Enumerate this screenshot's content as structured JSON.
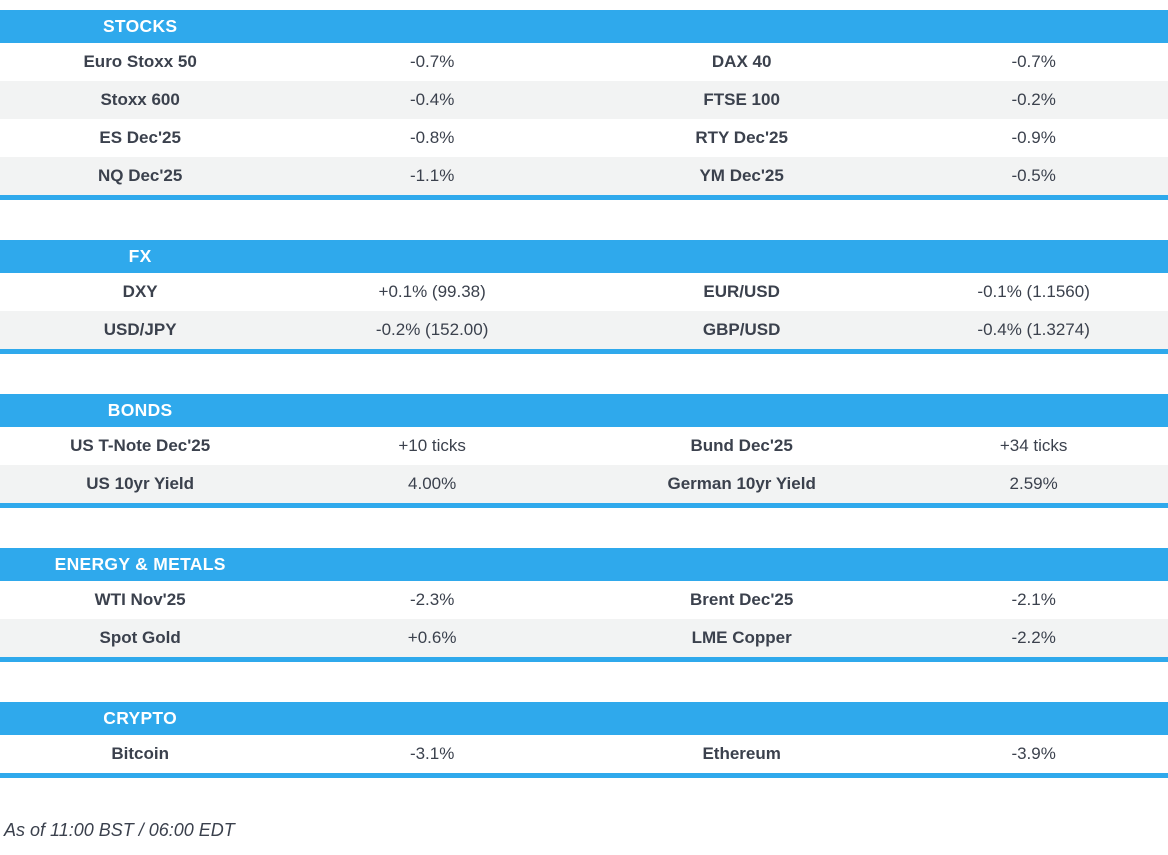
{
  "colors": {
    "accent": "#2FA9EC",
    "stripe": "#F2F3F3",
    "text": "#3B414D",
    "header_text": "#FFFFFF"
  },
  "sections": [
    {
      "title": "STOCKS",
      "rows": [
        [
          "Euro Stoxx 50",
          "-0.7%",
          "DAX 40",
          "-0.7%"
        ],
        [
          "Stoxx 600",
          "-0.4%",
          "FTSE 100",
          "-0.2%"
        ],
        [
          "ES Dec'25",
          "-0.8%",
          "RTY Dec'25",
          "-0.9%"
        ],
        [
          "NQ Dec'25",
          "-1.1%",
          "YM Dec'25",
          "-0.5%"
        ]
      ]
    },
    {
      "title": "FX",
      "rows": [
        [
          "DXY",
          "+0.1% (99.38)",
          "EUR/USD",
          "-0.1% (1.1560)"
        ],
        [
          "USD/JPY",
          "-0.2% (152.00)",
          "GBP/USD",
          "-0.4% (1.3274)"
        ]
      ]
    },
    {
      "title": "BONDS",
      "rows": [
        [
          "US T-Note Dec'25",
          "+10 ticks",
          "Bund Dec'25",
          "+34 ticks"
        ],
        [
          "US 10yr Yield",
          "4.00%",
          "German 10yr Yield",
          "2.59%"
        ]
      ]
    },
    {
      "title": "ENERGY & METALS",
      "rows": [
        [
          "WTI Nov'25",
          "-2.3%",
          "Brent Dec'25",
          "-2.1%"
        ],
        [
          "Spot Gold",
          "+0.6%",
          "LME Copper",
          "-2.2%"
        ]
      ]
    },
    {
      "title": "CRYPTO",
      "rows": [
        [
          "Bitcoin",
          "-3.1%",
          "Ethereum",
          "-3.9%"
        ]
      ]
    }
  ],
  "footer": {
    "as_of": "As of 11:00 BST / 06:00 EDT"
  }
}
